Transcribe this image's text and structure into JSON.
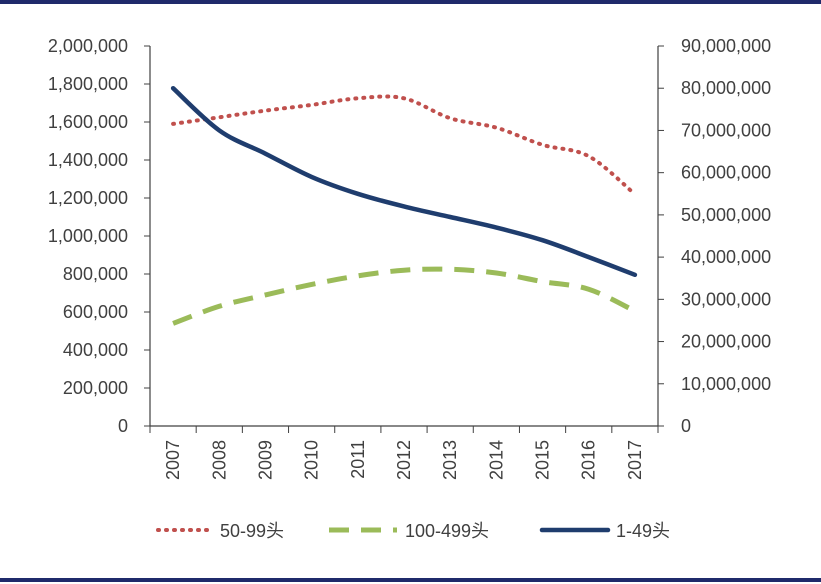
{
  "chart_data": {
    "type": "line",
    "categories": [
      "2007",
      "2008",
      "2009",
      "2010",
      "2011",
      "2012",
      "2013",
      "2014",
      "2015",
      "2016",
      "2017"
    ],
    "axes": {
      "left": {
        "ylim": [
          0,
          2000000
        ],
        "ticks": [
          "0",
          "200,000",
          "400,000",
          "600,000",
          "800,000",
          "1,000,000",
          "1,200,000",
          "1,400,000",
          "1,600,000",
          "1,800,000",
          "2,000,000"
        ]
      },
      "right": {
        "ylim": [
          0,
          90000000
        ],
        "ticks": [
          "0",
          "10,000,000",
          "20,000,000",
          "30,000,000",
          "40,000,000",
          "50,000,000",
          "60,000,000",
          "70,000,000",
          "80,000,000",
          "90,000,000"
        ]
      }
    },
    "grid": false,
    "legend_position": "bottom",
    "series": [
      {
        "name": "50-99头",
        "axis": "left",
        "style": "dotted",
        "color": "#c0504d",
        "values": [
          1590000,
          1625000,
          1660000,
          1690000,
          1725000,
          1725000,
          1620000,
          1570000,
          1480000,
          1420000,
          1220000
        ]
      },
      {
        "name": "100-499头",
        "axis": "left",
        "style": "dashed",
        "color": "#9bbb59",
        "values": [
          540000,
          630000,
          690000,
          745000,
          790000,
          820000,
          825000,
          805000,
          760000,
          720000,
          605000
        ]
      },
      {
        "name": "1-49头",
        "axis": "right",
        "style": "solid",
        "color": "#1f3d6e",
        "values": [
          80000000,
          70000000,
          64500000,
          59000000,
          55000000,
          52000000,
          49500000,
          47000000,
          44000000,
          40000000,
          35800000
        ]
      }
    ]
  }
}
